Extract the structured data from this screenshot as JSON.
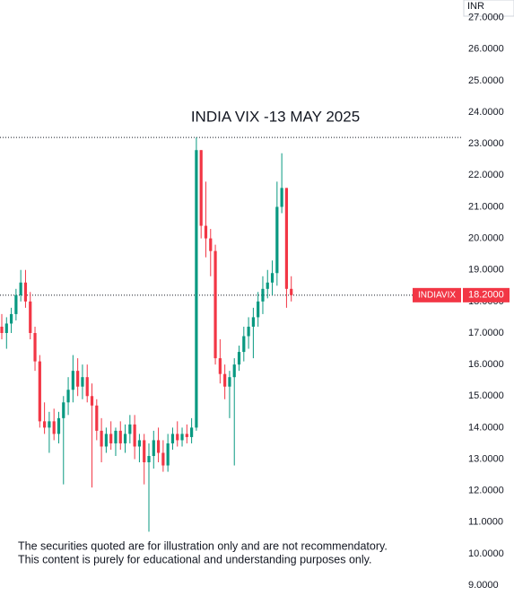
{
  "chart_data": {
    "type": "candlestick",
    "title": "INDIA VIX -13 MAY 2025",
    "currency": "INR",
    "up_color": "#089981",
    "down_color": "#f23645",
    "open": [
      17.2,
      17.0,
      17.3,
      17.6,
      18.2,
      18.6,
      18.0,
      17.0,
      16.1,
      14.2,
      14.0,
      14.2,
      13.8,
      14.3,
      14.8,
      15.2,
      15.8,
      15.3,
      15.6,
      15.0,
      14.7,
      13.9,
      13.4,
      13.8,
      13.5,
      13.9,
      13.5,
      13.8,
      14.1,
      13.4,
      13.6,
      12.9,
      13.1,
      13.6,
      13.2,
      12.8,
      13.5,
      13.8,
      13.6,
      13.8,
      13.7,
      14.0,
      22.8,
      20.4,
      20.0,
      19.6,
      16.2,
      15.7,
      15.3,
      15.6,
      16.0,
      16.4,
      16.9,
      17.2,
      17.5,
      18.0,
      18.4,
      18.6,
      18.9,
      21.0,
      21.6,
      18.4
    ],
    "high": [
      17.6,
      17.5,
      17.8,
      18.4,
      19.0,
      19.0,
      18.3,
      17.2,
      16.3,
      14.8,
      14.5,
      14.6,
      14.5,
      15.0,
      15.6,
      16.3,
      16.2,
      16.0,
      16.0,
      15.4,
      14.9,
      14.3,
      14.0,
      14.2,
      14.0,
      14.2,
      14.1,
      14.4,
      14.4,
      13.8,
      13.8,
      13.5,
      13.9,
      14.0,
      13.6,
      13.8,
      14.0,
      14.2,
      14.0,
      14.1,
      14.3,
      23.2,
      22.8,
      21.8,
      20.3,
      19.8,
      16.8,
      16.0,
      15.8,
      16.2,
      16.6,
      17.2,
      17.5,
      17.8,
      18.3,
      18.8,
      19.0,
      19.3,
      21.8,
      22.7,
      21.6,
      18.8
    ],
    "low": [
      16.8,
      16.5,
      17.0,
      17.4,
      18.0,
      17.8,
      16.8,
      15.8,
      14.0,
      13.8,
      13.2,
      13.6,
      13.5,
      12.2,
      14.4,
      14.8,
      15.0,
      14.9,
      14.8,
      12.1,
      13.6,
      12.9,
      13.2,
      13.3,
      13.1,
      13.3,
      13.2,
      13.5,
      13.0,
      12.9,
      12.2,
      10.7,
      12.7,
      12.9,
      12.6,
      12.6,
      13.3,
      13.4,
      13.4,
      13.5,
      13.5,
      13.9,
      20.0,
      19.4,
      18.8,
      16.0,
      15.4,
      14.9,
      14.3,
      12.8,
      15.8,
      16.1,
      16.5,
      16.2,
      17.2,
      17.6,
      18.1,
      18.2,
      18.5,
      20.8,
      17.8,
      18.0
    ],
    "close": [
      17.0,
      17.3,
      17.6,
      18.2,
      18.6,
      18.0,
      17.0,
      16.1,
      14.2,
      14.0,
      14.2,
      13.8,
      14.3,
      14.8,
      15.2,
      15.8,
      15.3,
      15.6,
      15.0,
      14.7,
      13.9,
      13.4,
      13.8,
      13.5,
      13.9,
      13.5,
      13.8,
      14.1,
      13.4,
      13.6,
      12.9,
      13.1,
      13.6,
      13.2,
      12.8,
      13.5,
      13.8,
      13.6,
      13.8,
      13.7,
      14.0,
      22.8,
      20.4,
      20.0,
      19.6,
      16.2,
      15.7,
      15.3,
      15.6,
      16.0,
      16.4,
      16.9,
      17.2,
      17.5,
      18.0,
      18.4,
      18.6,
      18.9,
      21.0,
      21.6,
      18.4,
      18.2
    ],
    "ylim": [
      8.66,
      27.56
    ],
    "yticks": [
      {
        "value": 9,
        "label": "9.0000"
      },
      {
        "value": 10,
        "label": "10.0000"
      },
      {
        "value": 11,
        "label": "11.0000"
      },
      {
        "value": 12,
        "label": "12.0000"
      },
      {
        "value": 13,
        "label": "13.0000"
      },
      {
        "value": 14,
        "label": "14.0000"
      },
      {
        "value": 15,
        "label": "15.0000"
      },
      {
        "value": 16,
        "label": "16.0000"
      },
      {
        "value": 17,
        "label": "17.0000"
      },
      {
        "value": 18,
        "label": "18.0000"
      },
      {
        "value": 19,
        "label": "19.0000"
      },
      {
        "value": 20,
        "label": "20.0000"
      },
      {
        "value": 21,
        "label": "21.0000"
      },
      {
        "value": 22,
        "label": "22.0000"
      },
      {
        "value": 23,
        "label": "23.0000"
      },
      {
        "value": 24,
        "label": "24.0000"
      },
      {
        "value": 25,
        "label": "25.0000"
      },
      {
        "value": 26,
        "label": "26.0000"
      },
      {
        "value": 27,
        "label": "27.0000"
      }
    ],
    "price_label": {
      "name": "INDIAVIX",
      "value": 18.2,
      "label": "18.2000"
    }
  },
  "disclaimer": [
    "The securities quoted are for illustration only and are not recommendatory.",
    "This content is purely for educational and understanding purposes only."
  ]
}
